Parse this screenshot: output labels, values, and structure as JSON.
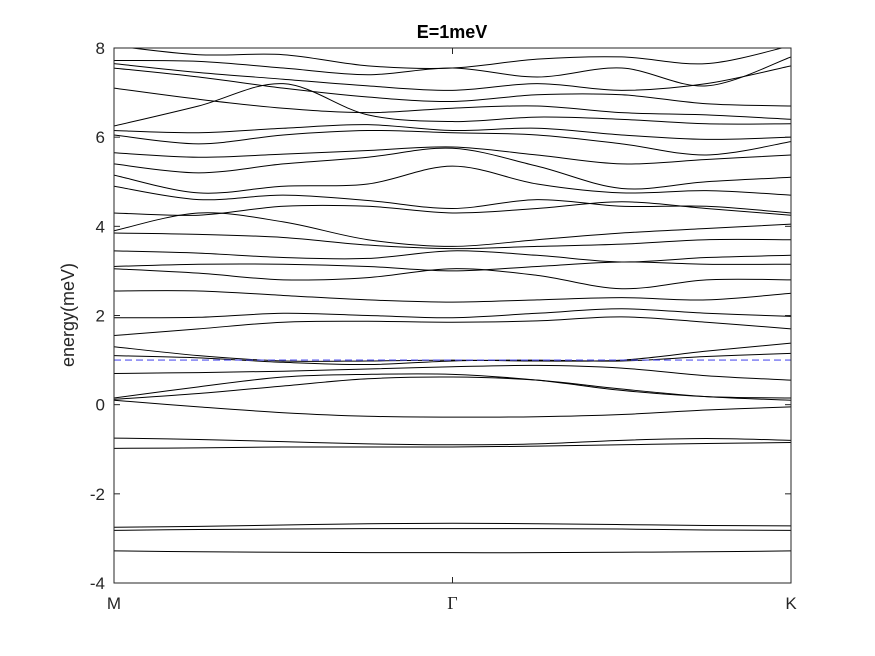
{
  "chart_data": {
    "type": "line",
    "title": "E=1meV",
    "xlabel": "",
    "ylabel": "energy(meV)",
    "xlim": [
      0,
      2
    ],
    "ylim": [
      -4,
      8
    ],
    "x_ticks": [
      {
        "value": 0,
        "label": "M"
      },
      {
        "value": 1,
        "label": "Γ"
      },
      {
        "value": 2,
        "label": "K"
      }
    ],
    "y_ticks": [
      -4,
      -2,
      0,
      2,
      4,
      6,
      8
    ],
    "y_tick_labels": [
      "-4",
      "-2",
      "0",
      "2",
      "4",
      "6",
      "8"
    ],
    "grid": false,
    "reference_line": {
      "y": 1,
      "style": "dashed",
      "color": "#5555ee"
    },
    "line_color": "#000000",
    "x": [
      0,
      0.25,
      0.5,
      0.75,
      1,
      1.25,
      1.5,
      1.75,
      2
    ],
    "series": [
      {
        "values": [
          -3.28,
          -3.3,
          -3.31,
          -3.32,
          -3.32,
          -3.32,
          -3.31,
          -3.3,
          -3.28
        ]
      },
      {
        "values": [
          -2.82,
          -2.8,
          -2.79,
          -2.78,
          -2.78,
          -2.78,
          -2.79,
          -2.81,
          -2.82
        ]
      },
      {
        "values": [
          -2.75,
          -2.73,
          -2.7,
          -2.67,
          -2.66,
          -2.67,
          -2.69,
          -2.71,
          -2.72
        ]
      },
      {
        "values": [
          -0.98,
          -0.97,
          -0.95,
          -0.95,
          -0.95,
          -0.93,
          -0.9,
          -0.87,
          -0.85
        ]
      },
      {
        "values": [
          -0.75,
          -0.78,
          -0.83,
          -0.88,
          -0.9,
          -0.88,
          -0.8,
          -0.76,
          -0.8
        ]
      },
      {
        "values": [
          0.1,
          -0.05,
          -0.18,
          -0.26,
          -0.28,
          -0.27,
          -0.22,
          -0.12,
          -0.05
        ]
      },
      {
        "values": [
          0.12,
          0.25,
          0.42,
          0.58,
          0.62,
          0.55,
          0.35,
          0.18,
          0.1
        ]
      },
      {
        "values": [
          0.15,
          0.4,
          0.62,
          0.68,
          0.68,
          0.55,
          0.32,
          0.18,
          0.15
        ]
      },
      {
        "values": [
          0.7,
          0.72,
          0.75,
          0.8,
          0.85,
          0.88,
          0.82,
          0.65,
          0.55
        ]
      },
      {
        "values": [
          1.1,
          1.05,
          0.95,
          0.9,
          0.98,
          1.0,
          0.98,
          1.08,
          1.15
        ]
      },
      {
        "values": [
          1.3,
          1.1,
          0.98,
          0.98,
          1.0,
          0.98,
          1.0,
          1.2,
          1.38
        ]
      },
      {
        "values": [
          1.55,
          1.7,
          1.85,
          1.87,
          1.85,
          1.88,
          1.97,
          1.85,
          1.7
        ]
      },
      {
        "values": [
          1.95,
          1.96,
          2.05,
          2.0,
          1.95,
          2.05,
          2.15,
          2.05,
          1.98
        ]
      },
      {
        "values": [
          2.55,
          2.55,
          2.45,
          2.35,
          2.3,
          2.35,
          2.4,
          2.35,
          2.5
        ]
      },
      {
        "values": [
          3.05,
          2.95,
          2.8,
          2.85,
          3.05,
          2.9,
          2.6,
          2.8,
          2.8
        ]
      },
      {
        "values": [
          3.1,
          3.15,
          3.15,
          3.1,
          3.0,
          3.1,
          3.2,
          3.15,
          3.15
        ]
      },
      {
        "values": [
          3.45,
          3.4,
          3.3,
          3.28,
          3.45,
          3.35,
          3.2,
          3.3,
          3.35
        ]
      },
      {
        "values": [
          3.85,
          3.82,
          3.75,
          3.58,
          3.5,
          3.55,
          3.6,
          3.7,
          3.7
        ]
      },
      {
        "values": [
          3.9,
          4.3,
          4.1,
          3.7,
          3.55,
          3.7,
          3.85,
          3.95,
          4.05
        ]
      },
      {
        "values": [
          4.3,
          4.25,
          4.45,
          4.45,
          4.3,
          4.4,
          4.55,
          4.4,
          4.25
        ]
      },
      {
        "values": [
          4.9,
          4.6,
          4.7,
          4.58,
          4.4,
          4.6,
          4.45,
          4.45,
          4.3
        ]
      },
      {
        "values": [
          5.15,
          4.75,
          4.9,
          4.95,
          5.35,
          4.95,
          4.75,
          4.8,
          4.7
        ]
      },
      {
        "values": [
          5.4,
          5.2,
          5.4,
          5.55,
          5.75,
          5.35,
          4.85,
          5.0,
          5.1
        ]
      },
      {
        "values": [
          5.65,
          5.55,
          5.62,
          5.7,
          5.78,
          5.6,
          5.4,
          5.5,
          5.6
        ]
      },
      {
        "values": [
          6.05,
          5.85,
          6.05,
          6.15,
          6.1,
          6.05,
          5.85,
          5.6,
          5.9
        ]
      },
      {
        "values": [
          6.15,
          6.1,
          6.2,
          6.28,
          6.15,
          6.2,
          6.05,
          5.95,
          6.0
        ]
      },
      {
        "values": [
          6.25,
          6.7,
          7.2,
          6.5,
          6.35,
          6.45,
          6.4,
          6.3,
          6.3
        ]
      },
      {
        "values": [
          7.1,
          6.85,
          6.65,
          6.55,
          6.65,
          6.7,
          6.55,
          6.5,
          6.4
        ]
      },
      {
        "values": [
          7.55,
          7.35,
          7.1,
          6.9,
          6.8,
          6.95,
          6.95,
          6.75,
          6.7
        ]
      },
      {
        "values": [
          7.65,
          7.45,
          7.3,
          7.15,
          7.05,
          7.2,
          7.05,
          7.2,
          7.6
        ]
      },
      {
        "values": [
          7.72,
          7.7,
          7.55,
          7.4,
          7.55,
          7.35,
          7.55,
          7.15,
          7.8
        ]
      },
      {
        "values": [
          8.05,
          7.85,
          7.85,
          7.6,
          7.55,
          7.75,
          7.8,
          7.65,
          8.05
        ]
      }
    ]
  }
}
